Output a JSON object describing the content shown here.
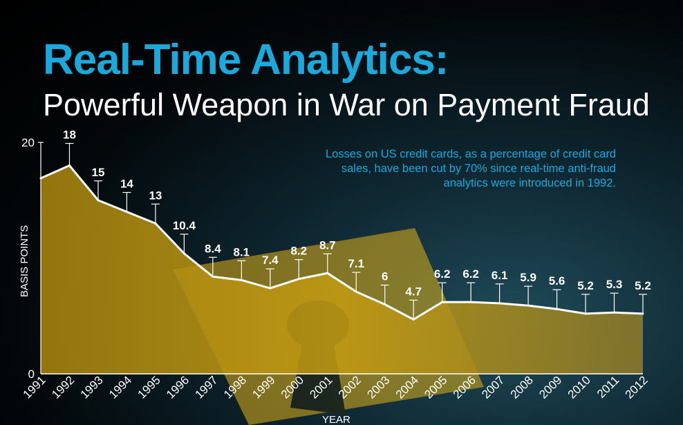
{
  "title": "Real-Time Analytics:",
  "subtitle": "Powerful Weapon in War on Payment Fraud",
  "annotation": "Losses on US credit cards, as a percentage of credit card sales, have been cut by 70% since real-time anti-fraud analytics were introduced in 1992.",
  "colors": {
    "title": "#1aa9dc",
    "area": "#b8900f",
    "line": "#ffffff",
    "annotation": "#1aa9dc"
  },
  "chart_data": {
    "type": "area",
    "xlabel": "YEAR",
    "ylabel": "BASIS POINTS",
    "ylim": [
      0,
      20
    ],
    "ytick_labels": [
      "0",
      "20"
    ],
    "grid": false,
    "categories": [
      "1991",
      "1992",
      "1993",
      "1994",
      "1995",
      "1996",
      "1997",
      "1998",
      "1999",
      "2000",
      "2001",
      "2002",
      "2003",
      "2004",
      "2005",
      "2006",
      "2007",
      "2008",
      "2009",
      "2010",
      "2011",
      "2012"
    ],
    "values": [
      16.9,
      18,
      15,
      14,
      13,
      10.4,
      8.4,
      8.1,
      7.4,
      8.2,
      8.7,
      7.1,
      6,
      4.7,
      6.2,
      6.2,
      6.1,
      5.9,
      5.6,
      5.2,
      5.3,
      5.2
    ],
    "data_labels": [
      null,
      "18",
      "15",
      "14",
      "13",
      "10.4",
      "8.4",
      "8.1",
      "7.4",
      "8.2",
      "8.7",
      "7.1",
      "6",
      "4.7",
      "6.2",
      "6.2",
      "6.1",
      "5.9",
      "5.6",
      "5.2",
      "5.3",
      "5.2"
    ]
  }
}
